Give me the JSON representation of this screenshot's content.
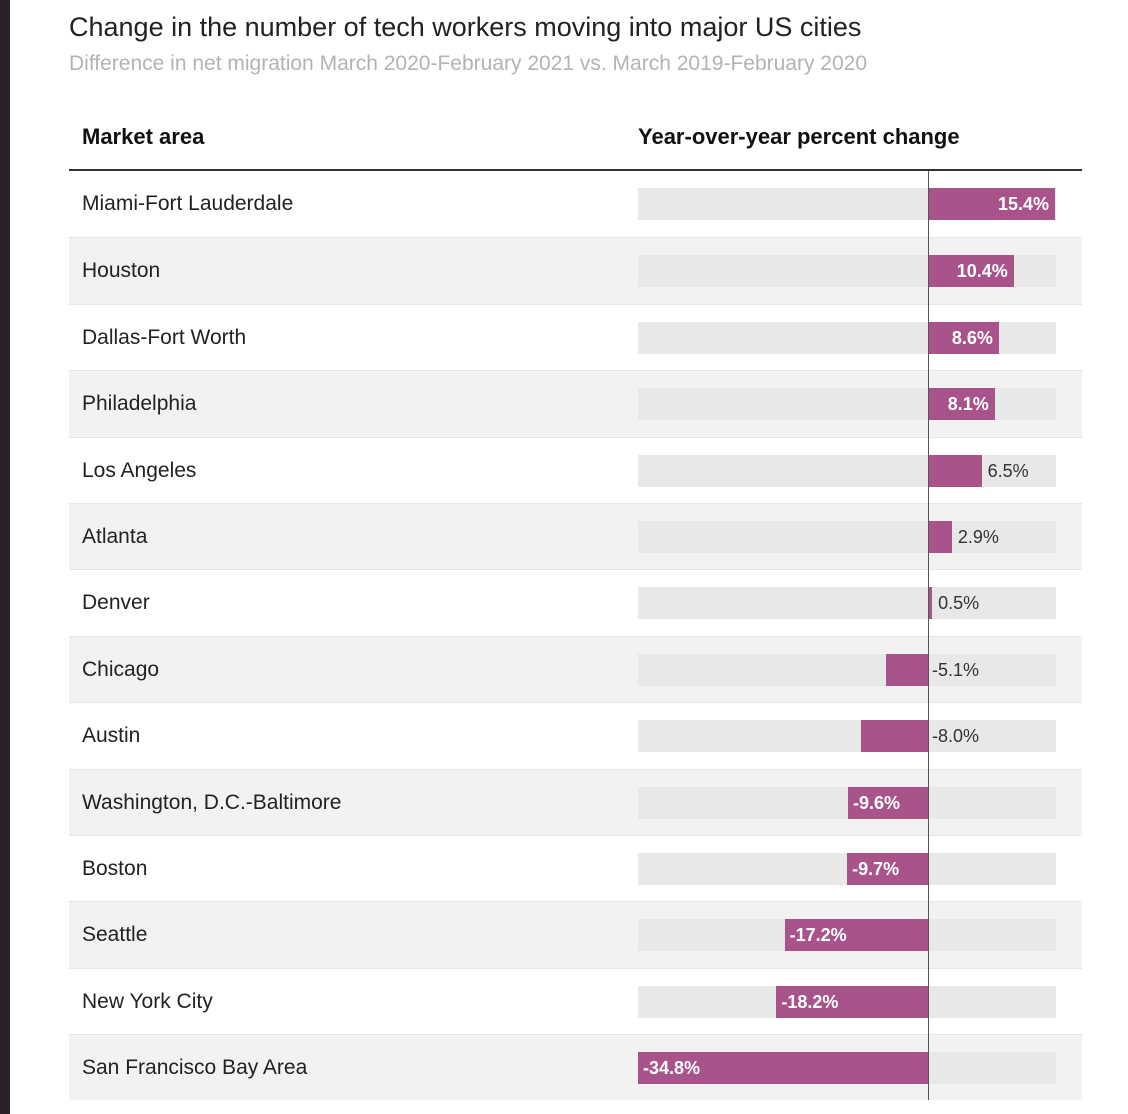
{
  "chart_data": {
    "type": "bar",
    "orientation": "horizontal",
    "title": "Change in the number of tech workers moving into major US cities",
    "subtitle": "Difference in net migration March 2020-February 2021 vs. March 2019-February 2020",
    "column_headers": [
      "Market area",
      "Year-over-year percent change"
    ],
    "categories": [
      "Miami-Fort Lauderdale",
      "Houston",
      "Dallas-Fort Worth",
      "Philadelphia",
      "Los Angeles",
      "Atlanta",
      "Denver",
      "Chicago",
      "Austin",
      "Washington, D.C.-Baltimore",
      "Boston",
      "Seattle",
      "New York City",
      "San Francisco Bay Area"
    ],
    "values": [
      15.4,
      10.4,
      8.6,
      8.1,
      6.5,
      2.9,
      0.5,
      -5.1,
      -8.0,
      -9.6,
      -9.7,
      -17.2,
      -18.2,
      -34.8
    ],
    "value_labels": [
      "15.4%",
      "10.4%",
      "8.6%",
      "8.1%",
      "6.5%",
      "2.9%",
      "0.5%",
      "-5.1%",
      "-8.0%",
      "-9.6%",
      "-9.7%",
      "-17.2%",
      "-18.2%",
      "-34.8%"
    ],
    "xlim": [
      -34.8,
      15.4
    ],
    "bar_color": "#a8538a",
    "track_color": "#e8e8e8"
  }
}
